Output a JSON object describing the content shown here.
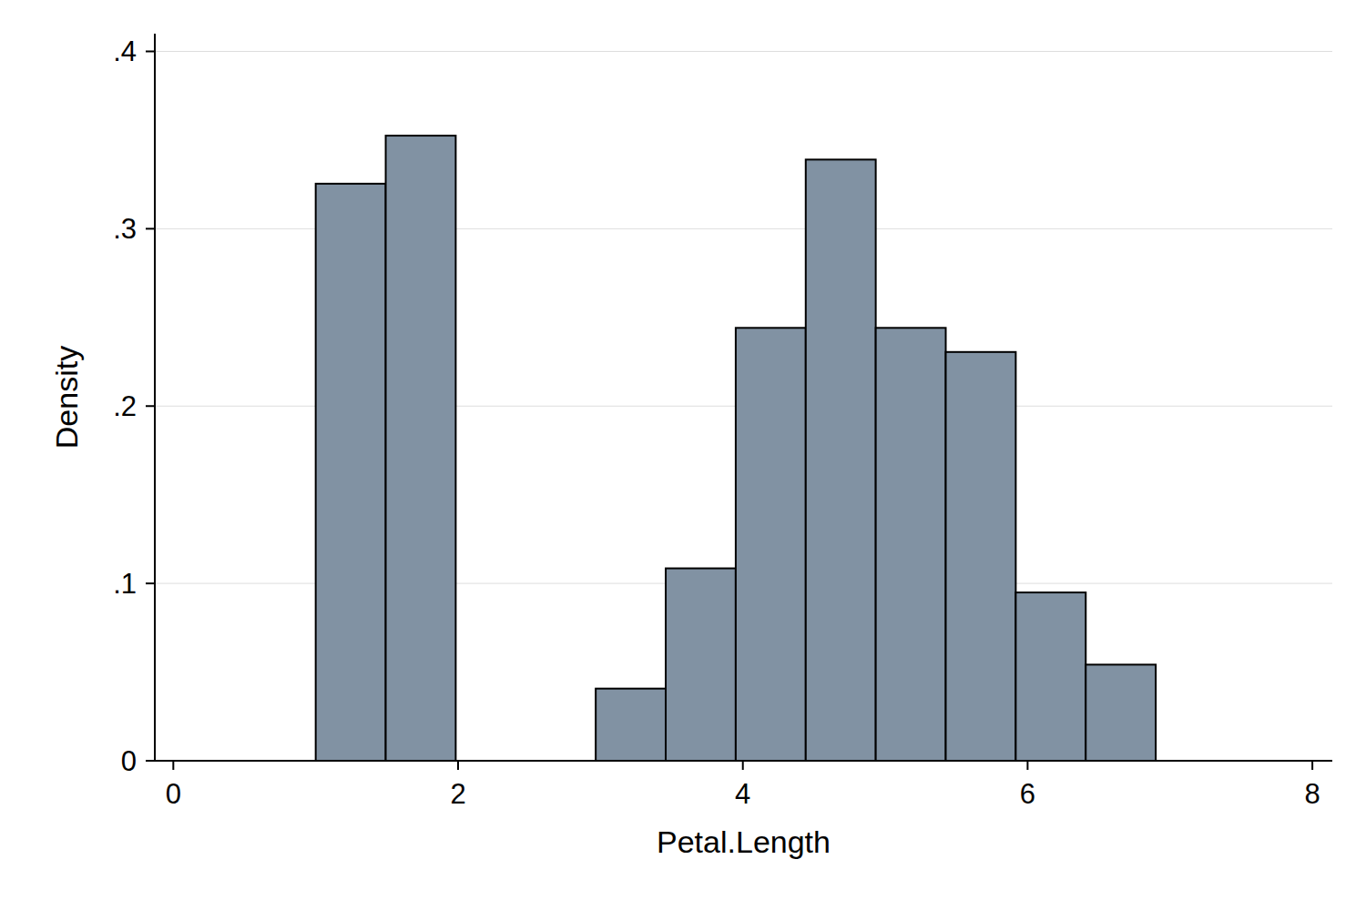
{
  "chart_data": {
    "type": "histogram",
    "x_label": "Petal.Length",
    "y_label": "Density",
    "bins": [
      1,
      1.4917,
      1.9833,
      2.475,
      2.9667,
      3.4583,
      3.95,
      4.4417,
      4.9333,
      5.425,
      5.9167,
      6.4083,
      6.9
    ],
    "values": [
      0.3254,
      0.3525,
      0,
      0,
      0.0407,
      0.1085,
      0.2441,
      0.339,
      0.2441,
      0.2305,
      0.0949,
      0.0542
    ],
    "color": "#8192a3",
    "xlim": [
      -0.13,
      8.14
    ],
    "xticks": [
      0,
      2,
      4,
      6,
      8
    ],
    "ylim": [
      0,
      0.41
    ],
    "yticks": [
      0,
      {
        "value": 0.1,
        "label": ".1"
      },
      {
        "value": 0.2,
        "label": ".2"
      },
      {
        "value": 0.3,
        "label": ".3"
      },
      {
        "value": 0.4,
        "label": ".4"
      }
    ],
    "grid": true
  }
}
